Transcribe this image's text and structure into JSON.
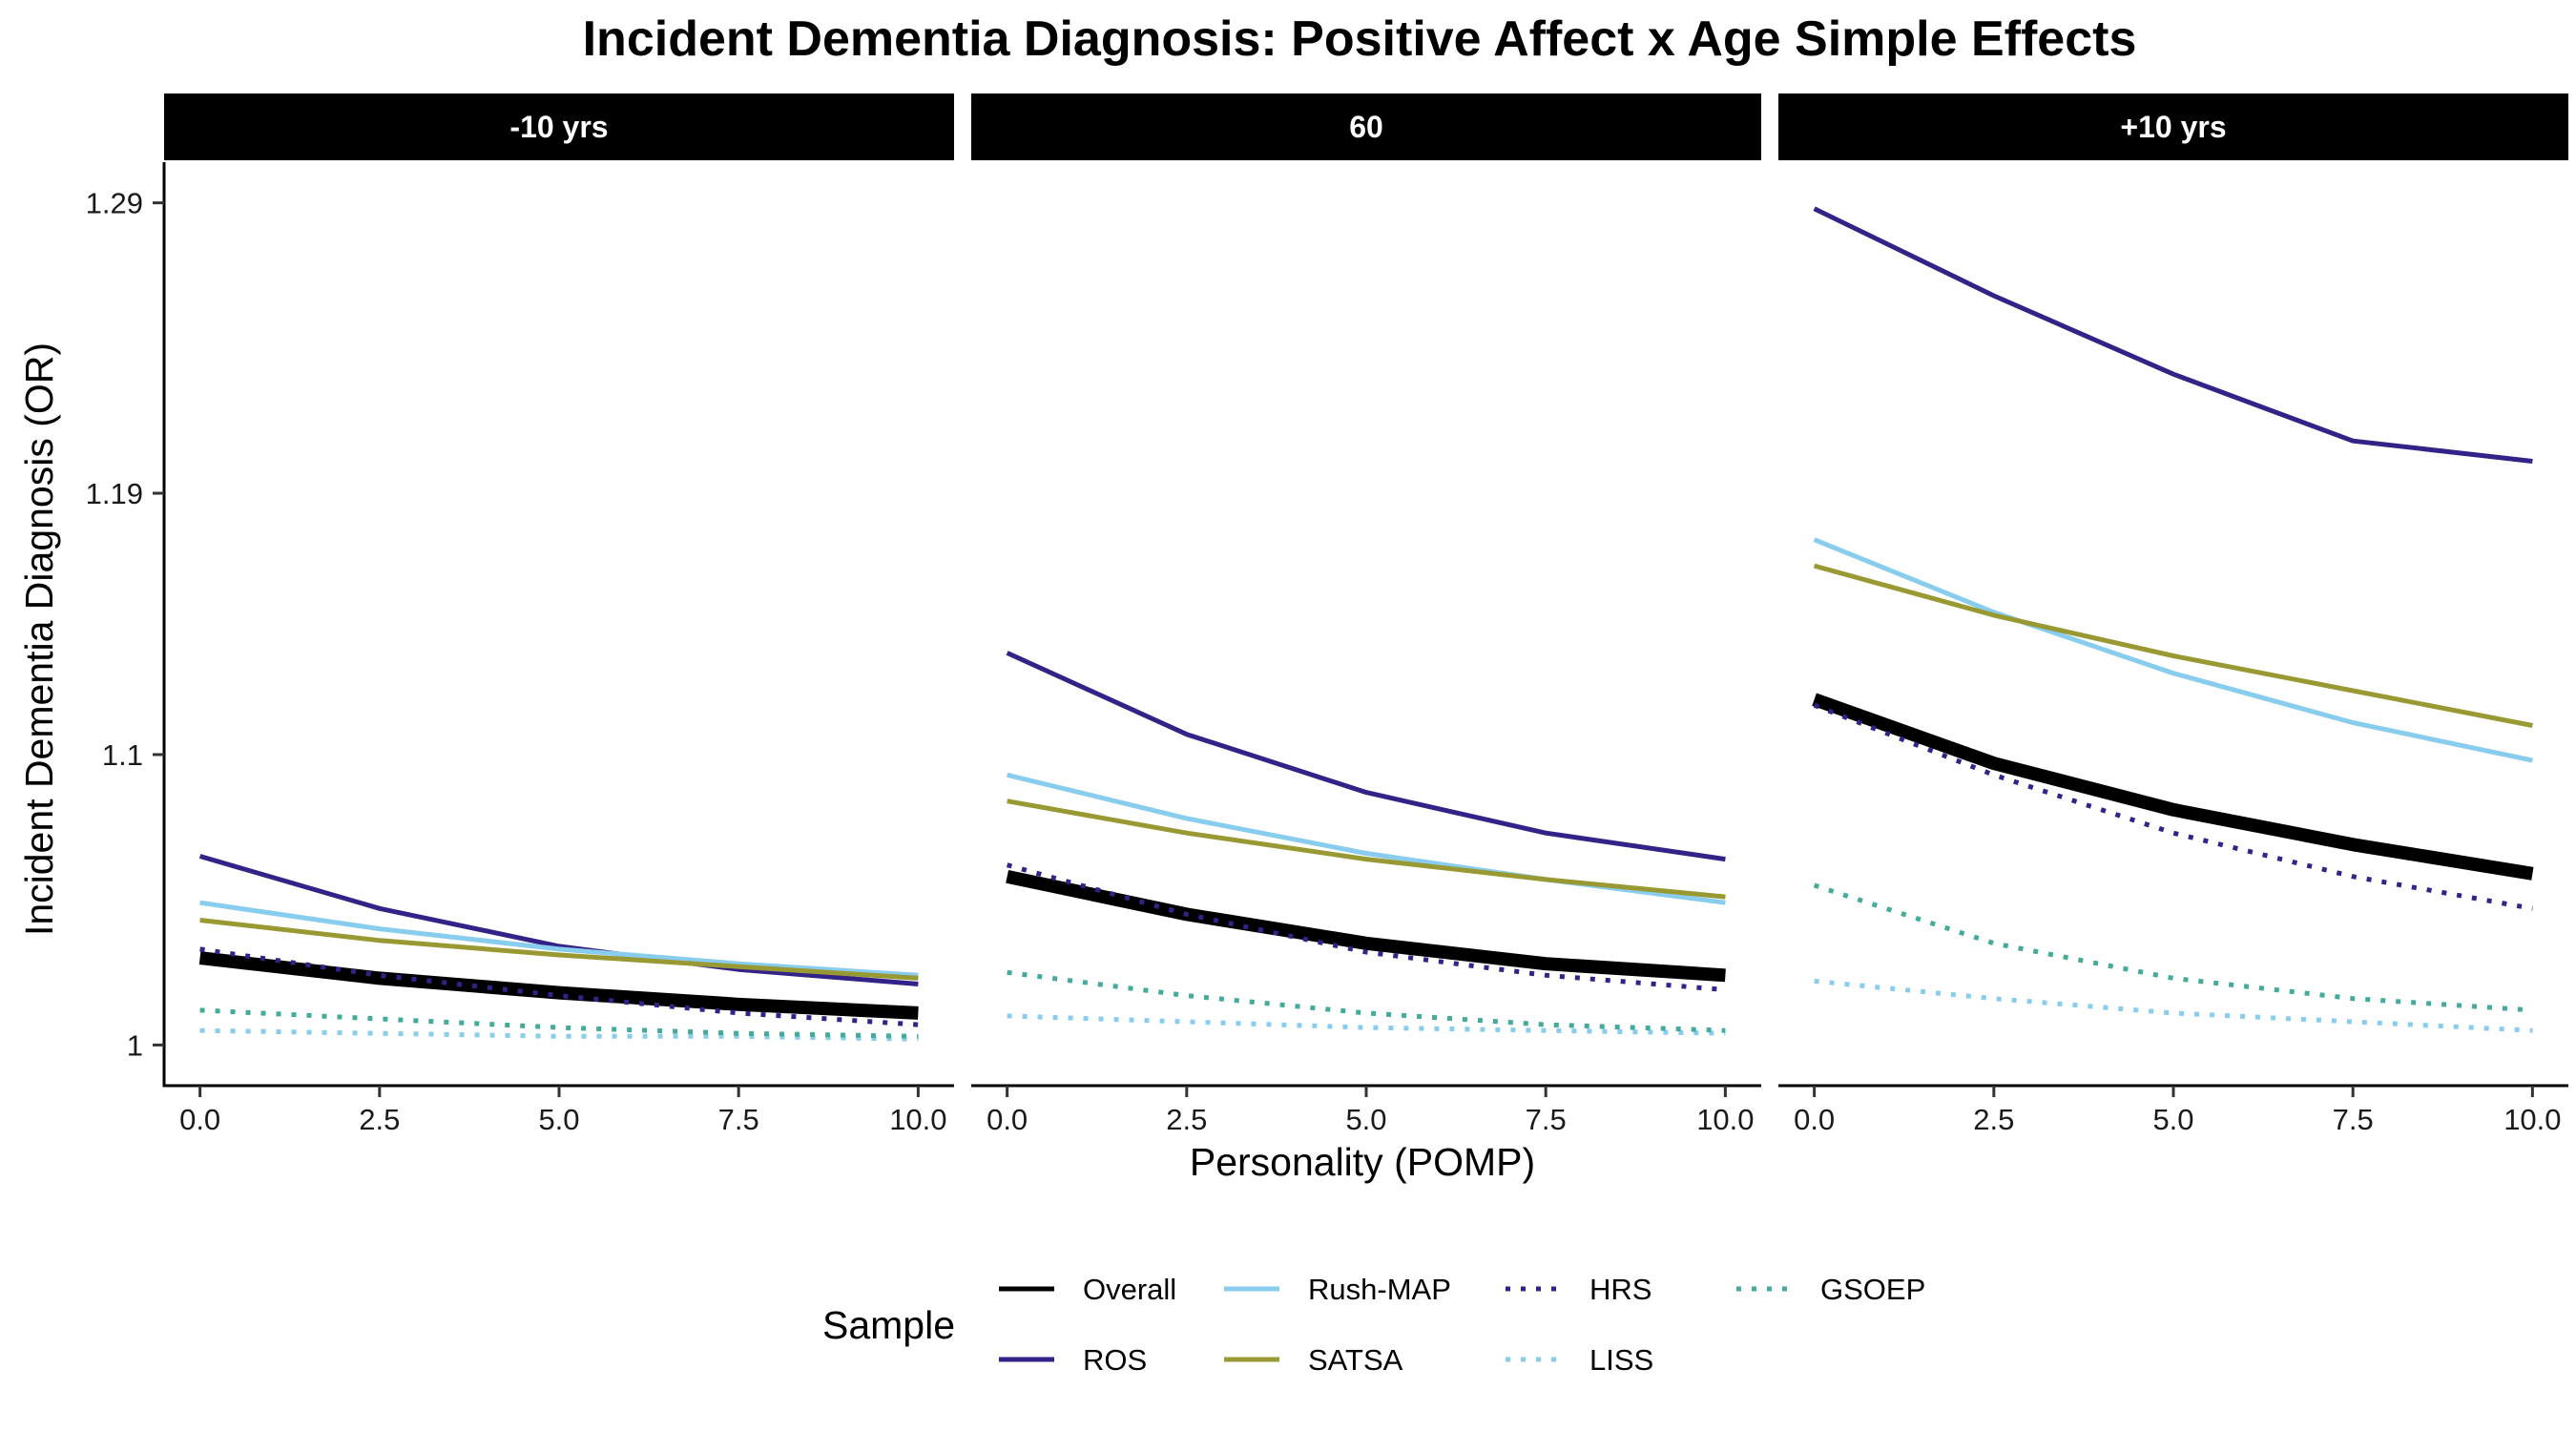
{
  "chart_data": {
    "type": "line",
    "title": "Incident Dementia Diagnosis: Positive Affect x Age Simple Effects",
    "xlabel": "Personality (POMP)",
    "ylabel": "Incident Dementia Diagnosis (OR)",
    "x_ticks": [
      "0.0",
      "2.5",
      "5.0",
      "7.5",
      "10.0"
    ],
    "x_tick_values": [
      0,
      2.5,
      5,
      7.5,
      10
    ],
    "xlim": [
      -0.5,
      10.5
    ],
    "y_ticks": [
      "1",
      "1.1",
      "1.19",
      "1.29"
    ],
    "y_tick_values": [
      1.0,
      1.1,
      1.19,
      1.29
    ],
    "ylim": [
      0.986,
      1.304
    ],
    "grid": false,
    "legend": {
      "title": "Sample",
      "position": "bottom",
      "items": [
        {
          "name": "Overall",
          "color": "#000000",
          "style": "solid"
        },
        {
          "name": "ROS",
          "color": "#332288",
          "style": "solid"
        },
        {
          "name": "Rush-MAP",
          "color": "#88CCEE",
          "style": "solid"
        },
        {
          "name": "SATSA",
          "color": "#999933",
          "style": "solid"
        },
        {
          "name": "HRS",
          "color": "#332288",
          "style": "dotted"
        },
        {
          "name": "LISS",
          "color": "#88CCEE",
          "style": "dotted"
        },
        {
          "name": "GSOEP",
          "color": "#44AA99",
          "style": "dotted"
        }
      ]
    },
    "panels": [
      {
        "label": "-10 yrs",
        "x": [
          0,
          2.5,
          5,
          7.5,
          10
        ],
        "series": [
          {
            "name": "Overall",
            "values": [
              1.03,
              1.023,
              1.018,
              1.014,
              1.011
            ]
          },
          {
            "name": "ROS",
            "values": [
              1.065,
              1.047,
              1.034,
              1.026,
              1.021
            ]
          },
          {
            "name": "Rush-MAP",
            "values": [
              1.049,
              1.04,
              1.033,
              1.028,
              1.024
            ]
          },
          {
            "name": "SATSA",
            "values": [
              1.043,
              1.036,
              1.031,
              1.027,
              1.023
            ]
          },
          {
            "name": "HRS",
            "values": [
              1.033,
              1.024,
              1.017,
              1.011,
              1.007
            ]
          },
          {
            "name": "LISS",
            "values": [
              1.005,
              1.004,
              1.003,
              1.003,
              1.002
            ]
          },
          {
            "name": "GSOEP",
            "values": [
              1.012,
              1.009,
              1.006,
              1.004,
              1.003
            ]
          }
        ]
      },
      {
        "label": "60",
        "x": [
          0,
          2.5,
          5,
          7.5,
          10
        ],
        "series": [
          {
            "name": "Overall",
            "values": [
              1.058,
              1.045,
              1.035,
              1.028,
              1.024
            ]
          },
          {
            "name": "ROS",
            "values": [
              1.135,
              1.107,
              1.087,
              1.073,
              1.064
            ]
          },
          {
            "name": "Rush-MAP",
            "values": [
              1.093,
              1.078,
              1.066,
              1.057,
              1.049
            ]
          },
          {
            "name": "SATSA",
            "values": [
              1.084,
              1.073,
              1.064,
              1.057,
              1.051
            ]
          },
          {
            "name": "HRS",
            "values": [
              1.062,
              1.045,
              1.032,
              1.024,
              1.019
            ]
          },
          {
            "name": "LISS",
            "values": [
              1.01,
              1.008,
              1.006,
              1.005,
              1.004
            ]
          },
          {
            "name": "GSOEP",
            "values": [
              1.025,
              1.017,
              1.011,
              1.007,
              1.005
            ]
          }
        ]
      },
      {
        "label": "+10 yrs",
        "x": [
          0,
          2.5,
          5,
          7.5,
          10
        ],
        "series": [
          {
            "name": "Overall",
            "values": [
              1.119,
              1.097,
              1.081,
              1.069,
              1.059
            ]
          },
          {
            "name": "ROS",
            "values": [
              1.288,
              1.258,
              1.231,
              1.208,
              1.201
            ]
          },
          {
            "name": "Rush-MAP",
            "values": [
              1.174,
              1.149,
              1.128,
              1.111,
              1.098
            ]
          },
          {
            "name": "SATSA",
            "values": [
              1.165,
              1.148,
              1.134,
              1.122,
              1.11
            ]
          },
          {
            "name": "HRS",
            "values": [
              1.117,
              1.093,
              1.073,
              1.058,
              1.047
            ]
          },
          {
            "name": "LISS",
            "values": [
              1.022,
              1.016,
              1.011,
              1.008,
              1.005
            ]
          },
          {
            "name": "GSOEP",
            "values": [
              1.055,
              1.035,
              1.023,
              1.016,
              1.012
            ]
          }
        ]
      }
    ]
  }
}
